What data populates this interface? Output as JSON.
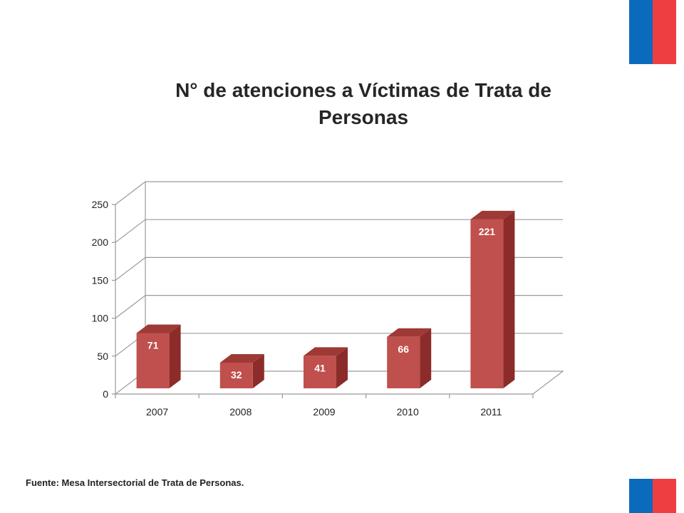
{
  "colors": {
    "flag_blue": "#0a6bbd",
    "flag_red": "#ef3e42",
    "bar_front": "#c0504d",
    "bar_side": "#8b2c2a",
    "bar_top": "#9e3936"
  },
  "chart_data": {
    "type": "bar",
    "title": "N°  de atenciones a Víctimas de Trata de Personas",
    "categories": [
      "2007",
      "2008",
      "2009",
      "2010",
      "2011"
    ],
    "values": [
      71,
      32,
      41,
      66,
      221
    ],
    "data_labels": [
      "71",
      "32",
      "41",
      "66",
      "221"
    ],
    "yticks": [
      "0",
      "50",
      "100",
      "150",
      "200",
      "250"
    ],
    "ylim": [
      0,
      250
    ],
    "grid": true,
    "style": "3d"
  },
  "footer": {
    "source": "Fuente: Mesa Intersectorial de Trata de Personas."
  }
}
